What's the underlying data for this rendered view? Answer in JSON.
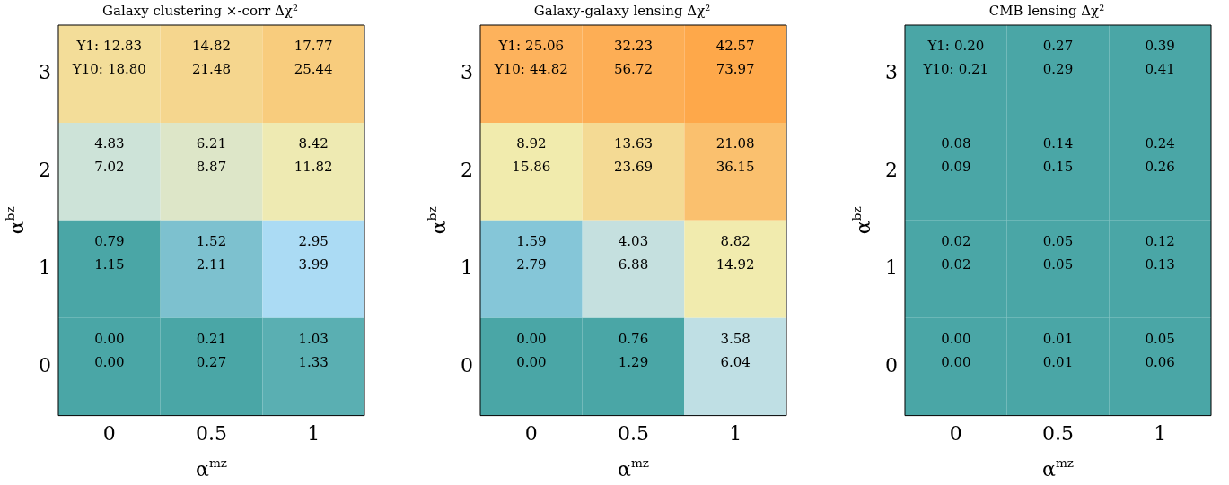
{
  "chart_data": [
    {
      "type": "heatmap",
      "title": "Galaxy clustering ×-corr Δχ²",
      "xlabel": "α$^{mz}$",
      "ylabel": "α$^{bz}$",
      "categories": [
        "0",
        "0.5",
        "1"
      ],
      "y_categories": [
        "3",
        "2",
        "1",
        "0"
      ],
      "cells": [
        [
          12.83,
          14.82,
          17.77
        ],
        [
          4.83,
          6.21,
          8.42
        ],
        [
          0.79,
          1.52,
          2.95
        ],
        [
          0.0,
          0.21,
          1.03
        ]
      ],
      "cell_labels": [
        [
          "12.83",
          "14.82",
          "17.77"
        ],
        [
          "4.83",
          "6.21",
          "8.42"
        ],
        [
          "0.79",
          "1.52",
          "2.95"
        ],
        [
          "0.00",
          "0.21",
          "1.03"
        ]
      ],
      "annotations": [
        "18.80",
        "21.48",
        "25.44",
        "7.02",
        "8.87",
        "11.82",
        "1.15",
        "2.11",
        "3.99",
        "0.00",
        "0.27",
        "1.33",
        "Y1:",
        "Y10:"
      ]
    },
    {
      "type": "heatmap",
      "title": "Galaxy-galaxy lensing Δχ²",
      "xlabel": "α$^{mz}$",
      "ylabel": "α$^{bz}$",
      "categories": [
        "0",
        "0.5",
        "1"
      ],
      "y_categories": [
        "3",
        "2",
        "1",
        "0"
      ],
      "cells": [
        [
          25.06,
          32.23,
          42.57
        ],
        [
          8.92,
          13.63,
          21.08
        ],
        [
          1.59,
          4.03,
          8.82
        ],
        [
          0.0,
          0.76,
          3.58
        ]
      ],
      "cell_labels": [
        [
          "25.06",
          "32.23",
          "42.57"
        ],
        [
          "8.92",
          "13.63",
          "21.08"
        ],
        [
          "1.59",
          "4.03",
          "8.82"
        ],
        [
          "0.00",
          "0.76",
          "3.58"
        ]
      ],
      "annotations": [
        "44.82",
        "56.72",
        "73.97",
        "15.86",
        "23.69",
        "36.15",
        "2.79",
        "6.88",
        "14.92",
        "0.00",
        "1.29",
        "6.04",
        "Y1:",
        "Y10:"
      ]
    },
    {
      "type": "heatmap",
      "title": "CMB lensing Δχ²",
      "xlabel": "α$^{mz}$",
      "ylabel": "α$^{bz}$",
      "categories": [
        "0",
        "0.5",
        "1"
      ],
      "y_categories": [
        "3",
        "2",
        "1",
        "0"
      ],
      "cells": [
        [
          0.2,
          0.27,
          0.39
        ],
        [
          0.08,
          0.14,
          0.24
        ],
        [
          0.02,
          0.05,
          0.12
        ],
        [
          0.0,
          0.01,
          0.05
        ]
      ],
      "cell_labels": [
        [
          "0.20",
          "0.27",
          "0.39"
        ],
        [
          "0.08",
          "0.14",
          "0.24"
        ],
        [
          "0.02",
          "0.05",
          "0.12"
        ],
        [
          "0.00",
          "0.01",
          "0.05"
        ]
      ],
      "annotations": [
        "0.21",
        "0.29",
        "0.41",
        "0.09",
        "0.15",
        "0.26",
        "0.02",
        "0.05",
        "0.13",
        "0.00",
        "0.01",
        "0.06",
        "Y1:",
        "Y10:"
      ]
    }
  ]
}
